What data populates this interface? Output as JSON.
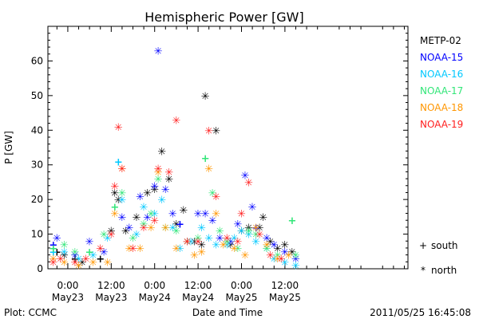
{
  "chart_data": {
    "type": "scatter",
    "title": "Hemispheric Power [GW]",
    "ylabel": "P [GW]",
    "xlabel": "Date and Time",
    "ylim": [
      0,
      70
    ],
    "xlim": [
      -5.5,
      94
    ],
    "x_units": "hours since 2011-05-23 00:00",
    "yticks": [
      "0",
      "10",
      "20",
      "30",
      "40",
      "50",
      "60"
    ],
    "xticks": [
      {
        "time": "0:00",
        "date": "May23"
      },
      {
        "time": "12:00",
        "date": "May23"
      },
      {
        "time": "0:00",
        "date": "May24"
      },
      {
        "time": "12:00",
        "date": "May24"
      },
      {
        "time": "0:00",
        "date": "May25"
      },
      {
        "time": "12:00",
        "date": "May25"
      }
    ],
    "marker_legend": [
      {
        "symbol": "+",
        "label": "south"
      },
      {
        "symbol": "*",
        "label": "north"
      }
    ],
    "series": [
      {
        "name": "METP-02",
        "color": "#000000",
        "points": [
          [
            -3,
            5,
            "+"
          ],
          [
            -1,
            4,
            "*"
          ],
          [
            2,
            3,
            "+"
          ],
          [
            4,
            2,
            "*"
          ],
          [
            9,
            3,
            "+"
          ],
          [
            12,
            11,
            "*"
          ],
          [
            13,
            22,
            "*"
          ],
          [
            14,
            20,
            "*"
          ],
          [
            16,
            11,
            "*"
          ],
          [
            19,
            15,
            "*"
          ],
          [
            22,
            22,
            "*"
          ],
          [
            24,
            23,
            "*"
          ],
          [
            26,
            34,
            "*"
          ],
          [
            28,
            26,
            "*"
          ],
          [
            30,
            13,
            "*"
          ],
          [
            32,
            17,
            "*"
          ],
          [
            35,
            8,
            "*"
          ],
          [
            37,
            7,
            "*"
          ],
          [
            38,
            50,
            "*"
          ],
          [
            41,
            40,
            "*"
          ],
          [
            45,
            7,
            "*"
          ],
          [
            48,
            11,
            "*"
          ],
          [
            50,
            12,
            "*"
          ],
          [
            53,
            12,
            "*"
          ],
          [
            54,
            15,
            "*"
          ],
          [
            56,
            8,
            "*"
          ],
          [
            58,
            6,
            "*"
          ],
          [
            60,
            7,
            "*"
          ],
          [
            62,
            5,
            "*"
          ]
        ]
      },
      {
        "name": "NOAA-15",
        "color": "#0000ff",
        "points": [
          [
            -4,
            7,
            "+"
          ],
          [
            -3,
            9,
            "*"
          ],
          [
            2,
            4,
            "*"
          ],
          [
            6,
            8,
            "*"
          ],
          [
            10,
            5,
            "*"
          ],
          [
            15,
            15,
            "*"
          ],
          [
            17,
            12,
            "*"
          ],
          [
            20,
            21,
            "*"
          ],
          [
            22,
            15,
            "*"
          ],
          [
            24,
            24,
            "*"
          ],
          [
            25,
            63,
            "*"
          ],
          [
            27,
            23,
            "*"
          ],
          [
            29,
            16,
            "*"
          ],
          [
            31,
            13,
            "+"
          ],
          [
            33,
            8,
            "*"
          ],
          [
            36,
            16,
            "*"
          ],
          [
            38,
            16,
            "*"
          ],
          [
            40,
            14,
            "*"
          ],
          [
            42,
            9,
            "*"
          ],
          [
            45,
            8,
            "*"
          ],
          [
            47,
            13,
            "*"
          ],
          [
            49,
            27,
            "*"
          ],
          [
            51,
            18,
            "*"
          ],
          [
            52,
            12,
            "+"
          ],
          [
            55,
            9,
            "*"
          ],
          [
            57,
            7,
            "*"
          ],
          [
            60,
            5,
            "*"
          ],
          [
            63,
            3,
            "*"
          ]
        ]
      },
      {
        "name": "NOAA-16",
        "color": "#00c8ff",
        "points": [
          [
            -4,
            5,
            "+"
          ],
          [
            -1,
            5,
            "*"
          ],
          [
            3,
            3,
            "*"
          ],
          [
            7,
            4,
            "*"
          ],
          [
            11,
            9,
            "*"
          ],
          [
            14,
            31,
            "+"
          ],
          [
            15,
            20,
            "*"
          ],
          [
            19,
            10,
            "*"
          ],
          [
            21,
            18,
            "*"
          ],
          [
            24,
            16,
            "*"
          ],
          [
            26,
            20,
            "*"
          ],
          [
            29,
            12,
            "*"
          ],
          [
            31,
            6,
            "*"
          ],
          [
            34,
            8,
            "*"
          ],
          [
            37,
            12,
            "*"
          ],
          [
            39,
            9,
            "*"
          ],
          [
            41,
            7,
            "*"
          ],
          [
            44,
            7,
            "*"
          ],
          [
            46,
            9,
            "*"
          ],
          [
            48,
            11,
            "*"
          ],
          [
            50,
            10,
            "*"
          ],
          [
            52,
            8,
            "*"
          ],
          [
            55,
            6,
            "*"
          ],
          [
            57,
            3,
            "*"
          ],
          [
            60,
            2,
            "*"
          ],
          [
            63,
            1,
            "*"
          ]
        ]
      },
      {
        "name": "NOAA-17",
        "color": "#32e678",
        "points": [
          [
            -4,
            6,
            "+"
          ],
          [
            -1,
            7,
            "*"
          ],
          [
            2,
            5,
            "*"
          ],
          [
            6,
            5,
            "+"
          ],
          [
            10,
            10,
            "*"
          ],
          [
            13,
            18,
            "+"
          ],
          [
            15,
            22,
            "*"
          ],
          [
            18,
            9,
            "*"
          ],
          [
            21,
            13,
            "*"
          ],
          [
            23,
            16,
            "*"
          ],
          [
            25,
            26,
            "*"
          ],
          [
            27,
            12,
            "*"
          ],
          [
            30,
            11,
            "*"
          ],
          [
            33,
            8,
            "*"
          ],
          [
            36,
            9,
            "*"
          ],
          [
            38,
            32,
            "+"
          ],
          [
            40,
            22,
            "*"
          ],
          [
            42,
            11,
            "*"
          ],
          [
            44,
            8,
            "*"
          ],
          [
            47,
            6,
            "*"
          ],
          [
            50,
            11,
            "*"
          ],
          [
            52,
            10,
            "*"
          ],
          [
            55,
            6,
            "*"
          ],
          [
            58,
            4,
            "*"
          ],
          [
            62,
            14,
            "+"
          ],
          [
            63,
            4,
            "*"
          ]
        ]
      },
      {
        "name": "NOAA-18",
        "color": "#ff9600",
        "points": [
          [
            -4,
            3,
            "*"
          ],
          [
            -1,
            2,
            "*"
          ],
          [
            3,
            1,
            "*"
          ],
          [
            7,
            2,
            "*"
          ],
          [
            11,
            2,
            "*"
          ],
          [
            13,
            16,
            "*"
          ],
          [
            15,
            29,
            "*"
          ],
          [
            17,
            6,
            "*"
          ],
          [
            20,
            6,
            "*"
          ],
          [
            23,
            12,
            "*"
          ],
          [
            25,
            28,
            "*"
          ],
          [
            27,
            12,
            "*"
          ],
          [
            30,
            6,
            "*"
          ],
          [
            33,
            8,
            "*"
          ],
          [
            35,
            4,
            "*"
          ],
          [
            37,
            5,
            "*"
          ],
          [
            39,
            29,
            "*"
          ],
          [
            41,
            16,
            "*"
          ],
          [
            43,
            7,
            "*"
          ],
          [
            46,
            6,
            "*"
          ],
          [
            49,
            4,
            "*"
          ],
          [
            52,
            12,
            "*"
          ],
          [
            55,
            7,
            "*"
          ],
          [
            58,
            3,
            "*"
          ],
          [
            61,
            4,
            "*"
          ]
        ]
      },
      {
        "name": "NOAA-19",
        "color": "#ff1e1e",
        "points": [
          [
            -4,
            2,
            "*"
          ],
          [
            -2,
            3,
            "*"
          ],
          [
            2,
            2,
            "*"
          ],
          [
            5,
            3,
            "*"
          ],
          [
            9,
            6,
            "*"
          ],
          [
            12,
            10,
            "*"
          ],
          [
            13,
            24,
            "*"
          ],
          [
            14,
            41,
            "*"
          ],
          [
            15,
            29,
            "*"
          ],
          [
            18,
            6,
            "*"
          ],
          [
            21,
            12,
            "*"
          ],
          [
            24,
            14,
            "*"
          ],
          [
            25,
            29,
            "*"
          ],
          [
            28,
            28,
            "*"
          ],
          [
            30,
            43,
            "*"
          ],
          [
            33,
            8,
            "*"
          ],
          [
            36,
            8,
            "*"
          ],
          [
            39,
            40,
            "*"
          ],
          [
            41,
            21,
            "*"
          ],
          [
            44,
            9,
            "*"
          ],
          [
            47,
            8,
            "*"
          ],
          [
            48,
            16,
            "*"
          ],
          [
            50,
            25,
            "*"
          ],
          [
            53,
            10,
            "*"
          ],
          [
            56,
            4,
            "*"
          ],
          [
            59,
            3,
            "*"
          ]
        ]
      }
    ]
  },
  "footer": {
    "left": "Plot: CCMC",
    "right": "2011/05/25 16:45:08"
  }
}
